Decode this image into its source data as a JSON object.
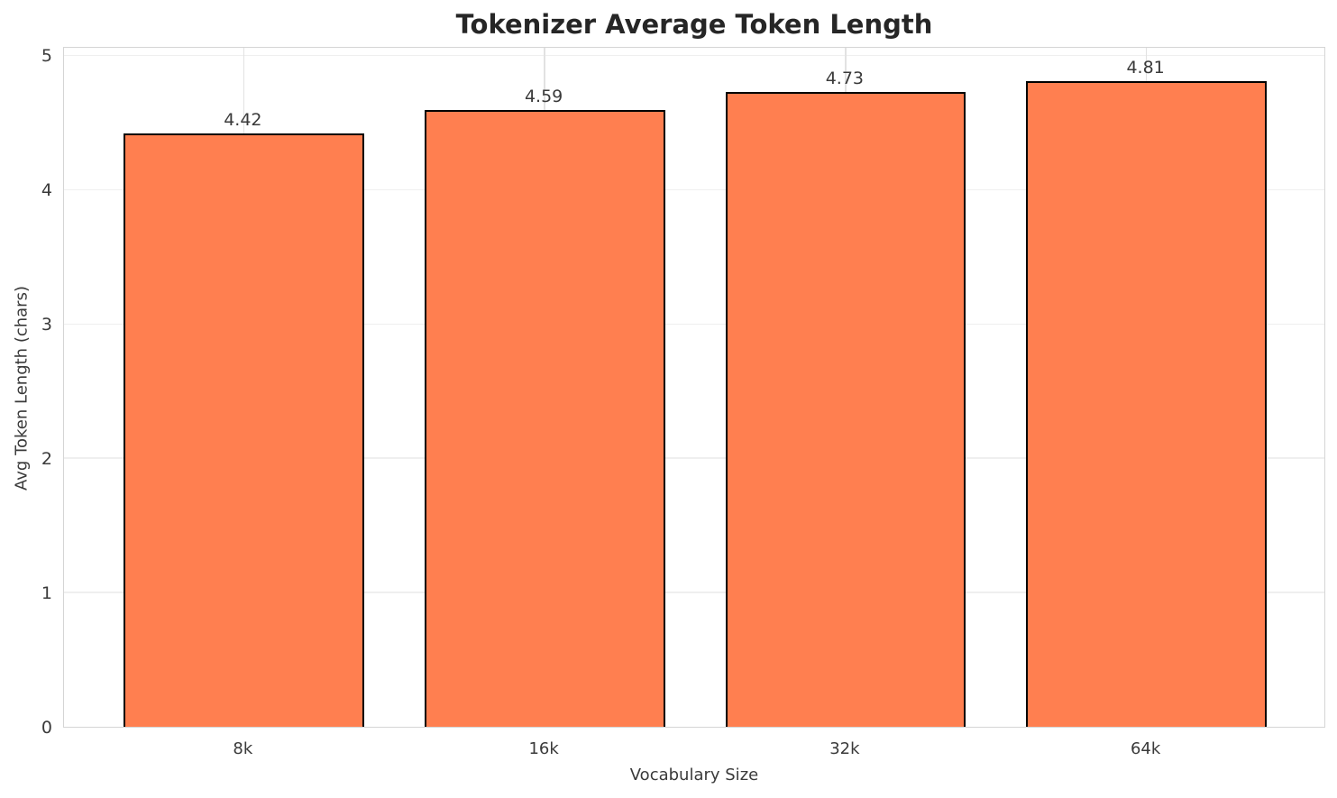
{
  "chart_data": {
    "type": "bar",
    "title": "Tokenizer Average Token Length",
    "xlabel": "Vocabulary Size",
    "ylabel": "Avg Token Length (chars)",
    "categories": [
      "8k",
      "16k",
      "32k",
      "64k"
    ],
    "values": [
      4.42,
      4.59,
      4.73,
      4.81
    ],
    "value_labels": [
      "4.42",
      "4.59",
      "4.73",
      "4.81"
    ],
    "yticks": [
      0,
      1,
      2,
      3,
      4,
      5
    ],
    "ylim": [
      0,
      5.07
    ],
    "grid": true,
    "legend": "none",
    "bar_color": "#FF7F50",
    "bar_edge_color": "#000000",
    "grid_color": "#efefef",
    "spine_color": "#d5d5d5",
    "text_color": "#3a3a3a",
    "title_color": "#262626"
  }
}
